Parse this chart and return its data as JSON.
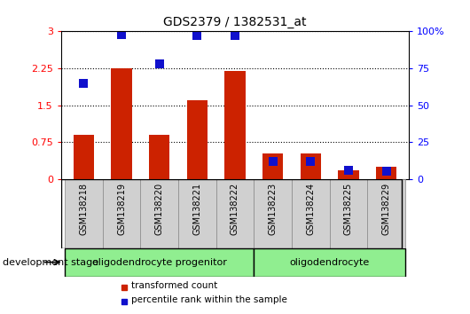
{
  "title": "GDS2379 / 1382531_at",
  "samples": [
    "GSM138218",
    "GSM138219",
    "GSM138220",
    "GSM138221",
    "GSM138222",
    "GSM138223",
    "GSM138224",
    "GSM138225",
    "GSM138229"
  ],
  "transformed_count": [
    0.9,
    2.25,
    0.9,
    1.6,
    2.2,
    0.52,
    0.52,
    0.17,
    0.25
  ],
  "percentile_rank_pct": [
    65,
    98,
    78,
    97,
    97,
    12,
    12,
    6,
    5
  ],
  "groups": [
    {
      "label": "oligodendrocyte progenitor",
      "start": 0,
      "end": 4,
      "color": "#90EE90"
    },
    {
      "label": "oligodendrocyte",
      "start": 5,
      "end": 8,
      "color": "#90EE90"
    }
  ],
  "left_ylim": [
    0,
    3.0
  ],
  "right_ylim": [
    0,
    100
  ],
  "left_yticks": [
    0,
    0.75,
    1.5,
    2.25,
    3.0
  ],
  "left_yticklabels": [
    "0",
    "0.75",
    "1.5",
    "2.25",
    "3"
  ],
  "right_yticks": [
    0,
    25,
    50,
    75,
    100
  ],
  "right_yticklabels": [
    "0",
    "25",
    "50",
    "75",
    "100%"
  ],
  "bar_color": "#CC2200",
  "dot_color": "#1010CC",
  "bar_width": 0.55,
  "dot_size": 55,
  "legend_labels": [
    "transformed count",
    "percentile rank within the sample"
  ],
  "legend_colors": [
    "#CC2200",
    "#1010CC"
  ],
  "dev_stage_label": "development stage",
  "background_color": "#ffffff",
  "tick_bg_color": "#d0d0d0"
}
